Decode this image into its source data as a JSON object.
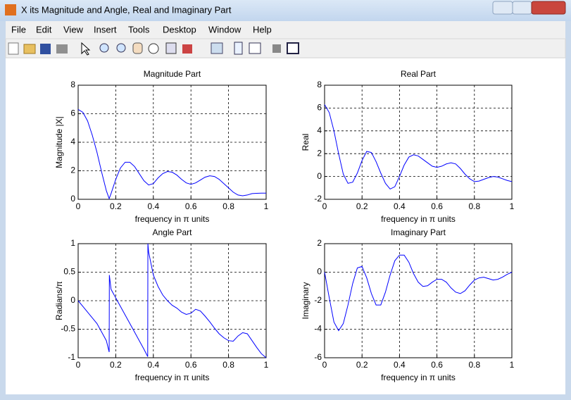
{
  "window": {
    "title": "X its Magnitude and Angle, Real and Imaginary Part",
    "menu": [
      "File",
      "Edit",
      "View",
      "Insert",
      "Tools",
      "Desktop",
      "Window",
      "Help"
    ]
  },
  "chart_data": [
    {
      "type": "line",
      "title": "Magnitude Part",
      "xlabel": "frequency in π units",
      "ylabel": "Magnitude  |X|",
      "grid": true,
      "x": [
        0,
        0.025,
        0.05,
        0.075,
        0.1,
        0.125,
        0.15,
        0.165,
        0.175,
        0.2,
        0.225,
        0.25,
        0.275,
        0.3,
        0.325,
        0.35,
        0.375,
        0.4,
        0.425,
        0.45,
        0.475,
        0.5,
        0.525,
        0.55,
        0.575,
        0.6,
        0.625,
        0.65,
        0.675,
        0.7,
        0.725,
        0.75,
        0.775,
        0.8,
        0.825,
        0.85,
        0.875,
        0.9,
        0.925,
        0.95,
        0.975,
        1
      ],
      "series": [
        {
          "color": "#0000ff",
          "values": [
            6.3,
            6.1,
            5.5,
            4.5,
            3.3,
            1.9,
            0.6,
            0.05,
            0.4,
            1.4,
            2.2,
            2.6,
            2.6,
            2.3,
            1.8,
            1.3,
            1.0,
            1.1,
            1.5,
            1.8,
            1.95,
            1.9,
            1.7,
            1.4,
            1.15,
            1.05,
            1.15,
            1.35,
            1.55,
            1.65,
            1.6,
            1.4,
            1.1,
            0.8,
            0.5,
            0.3,
            0.25,
            0.3,
            0.4,
            0.42,
            0.43,
            0.43
          ]
        }
      ],
      "xlim": [
        0,
        1
      ],
      "xticks": [
        0,
        0.2,
        0.4,
        0.6,
        0.8,
        1
      ],
      "ylim": [
        0,
        8
      ],
      "yticks": [
        0,
        2,
        4,
        6,
        8
      ]
    },
    {
      "type": "line",
      "title": "Real Part",
      "xlabel": "frequency in π units",
      "ylabel": "Real",
      "grid": true,
      "x": [
        0,
        0.025,
        0.05,
        0.075,
        0.1,
        0.125,
        0.15,
        0.175,
        0.2,
        0.225,
        0.25,
        0.275,
        0.3,
        0.325,
        0.35,
        0.375,
        0.4,
        0.425,
        0.45,
        0.475,
        0.5,
        0.525,
        0.55,
        0.575,
        0.6,
        0.625,
        0.65,
        0.675,
        0.7,
        0.725,
        0.75,
        0.775,
        0.8,
        0.825,
        0.85,
        0.875,
        0.9,
        0.925,
        0.95,
        0.975,
        1
      ],
      "series": [
        {
          "color": "#0000ff",
          "values": [
            6.3,
            5.6,
            4,
            2,
            0.2,
            -0.6,
            -0.5,
            0.3,
            1.4,
            2.2,
            2.1,
            1.3,
            0.3,
            -0.6,
            -1.1,
            -0.9,
            0,
            1.0,
            1.7,
            1.9,
            1.8,
            1.5,
            1.2,
            0.9,
            0.8,
            0.9,
            1.1,
            1.2,
            1.1,
            0.7,
            0.2,
            -0.2,
            -0.45,
            -0.4,
            -0.25,
            -0.1,
            0,
            -0.05,
            -0.2,
            -0.35,
            -0.45
          ]
        }
      ],
      "xlim": [
        0,
        1
      ],
      "xticks": [
        0,
        0.2,
        0.4,
        0.6,
        0.8,
        1
      ],
      "ylim": [
        -2,
        8
      ],
      "yticks": [
        -2,
        0,
        2,
        4,
        6,
        8
      ]
    },
    {
      "type": "line",
      "title": "Angle Part",
      "xlabel": "frequency in π units",
      "ylabel": "Radians/π",
      "grid": true,
      "x": [
        0,
        0.025,
        0.05,
        0.075,
        0.1,
        0.125,
        0.15,
        0.165,
        0.166,
        0.175,
        0.2,
        0.225,
        0.25,
        0.275,
        0.3,
        0.325,
        0.35,
        0.37,
        0.371,
        0.375,
        0.4,
        0.425,
        0.45,
        0.475,
        0.5,
        0.525,
        0.55,
        0.575,
        0.6,
        0.625,
        0.65,
        0.675,
        0.7,
        0.725,
        0.75,
        0.775,
        0.8,
        0.825,
        0.85,
        0.875,
        0.9,
        0.925,
        0.95,
        0.975,
        1
      ],
      "series": [
        {
          "color": "#0000ff",
          "values": [
            0,
            -0.1,
            -0.2,
            -0.3,
            -0.4,
            -0.55,
            -0.7,
            -0.9,
            0.45,
            0.2,
            0.05,
            -0.1,
            -0.25,
            -0.4,
            -0.55,
            -0.7,
            -0.85,
            -0.98,
            1,
            0.85,
            0.45,
            0.25,
            0.1,
            0,
            -0.08,
            -0.13,
            -0.2,
            -0.24,
            -0.22,
            -0.15,
            -0.18,
            -0.27,
            -0.37,
            -0.48,
            -0.58,
            -0.65,
            -0.7,
            -0.71,
            -0.62,
            -0.56,
            -0.58,
            -0.7,
            -0.82,
            -0.93,
            -1
          ]
        }
      ],
      "xlim": [
        0,
        1
      ],
      "xticks": [
        0,
        0.2,
        0.4,
        0.6,
        0.8,
        1
      ],
      "ylim": [
        -1,
        1
      ],
      "yticks": [
        -1,
        -0.5,
        0,
        0.5,
        1
      ]
    },
    {
      "type": "line",
      "title": "Imaginary Part",
      "xlabel": "frequency in π units",
      "ylabel": "Imaginary",
      "grid": true,
      "x": [
        0,
        0.025,
        0.05,
        0.075,
        0.1,
        0.125,
        0.15,
        0.175,
        0.2,
        0.225,
        0.25,
        0.275,
        0.3,
        0.325,
        0.35,
        0.375,
        0.4,
        0.425,
        0.45,
        0.475,
        0.5,
        0.525,
        0.55,
        0.575,
        0.6,
        0.625,
        0.65,
        0.675,
        0.7,
        0.725,
        0.75,
        0.775,
        0.8,
        0.825,
        0.85,
        0.875,
        0.9,
        0.925,
        0.95,
        0.975,
        1
      ],
      "series": [
        {
          "color": "#0000ff",
          "values": [
            0,
            -1.8,
            -3.5,
            -4.1,
            -3.6,
            -2.3,
            -0.8,
            0.3,
            0.4,
            -0.4,
            -1.5,
            -2.3,
            -2.3,
            -1.4,
            -0.2,
            0.8,
            1.2,
            1.2,
            0.7,
            -0.1,
            -0.7,
            -1.0,
            -0.95,
            -0.7,
            -0.5,
            -0.5,
            -0.7,
            -1.1,
            -1.4,
            -1.5,
            -1.3,
            -0.9,
            -0.55,
            -0.4,
            -0.35,
            -0.45,
            -0.55,
            -0.5,
            -0.35,
            -0.15,
            0
          ]
        }
      ],
      "xlim": [
        0,
        1
      ],
      "xticks": [
        0,
        0.2,
        0.4,
        0.6,
        0.8,
        1
      ],
      "ylim": [
        -6,
        2
      ],
      "yticks": [
        -6,
        -4,
        -2,
        0,
        2
      ]
    }
  ]
}
